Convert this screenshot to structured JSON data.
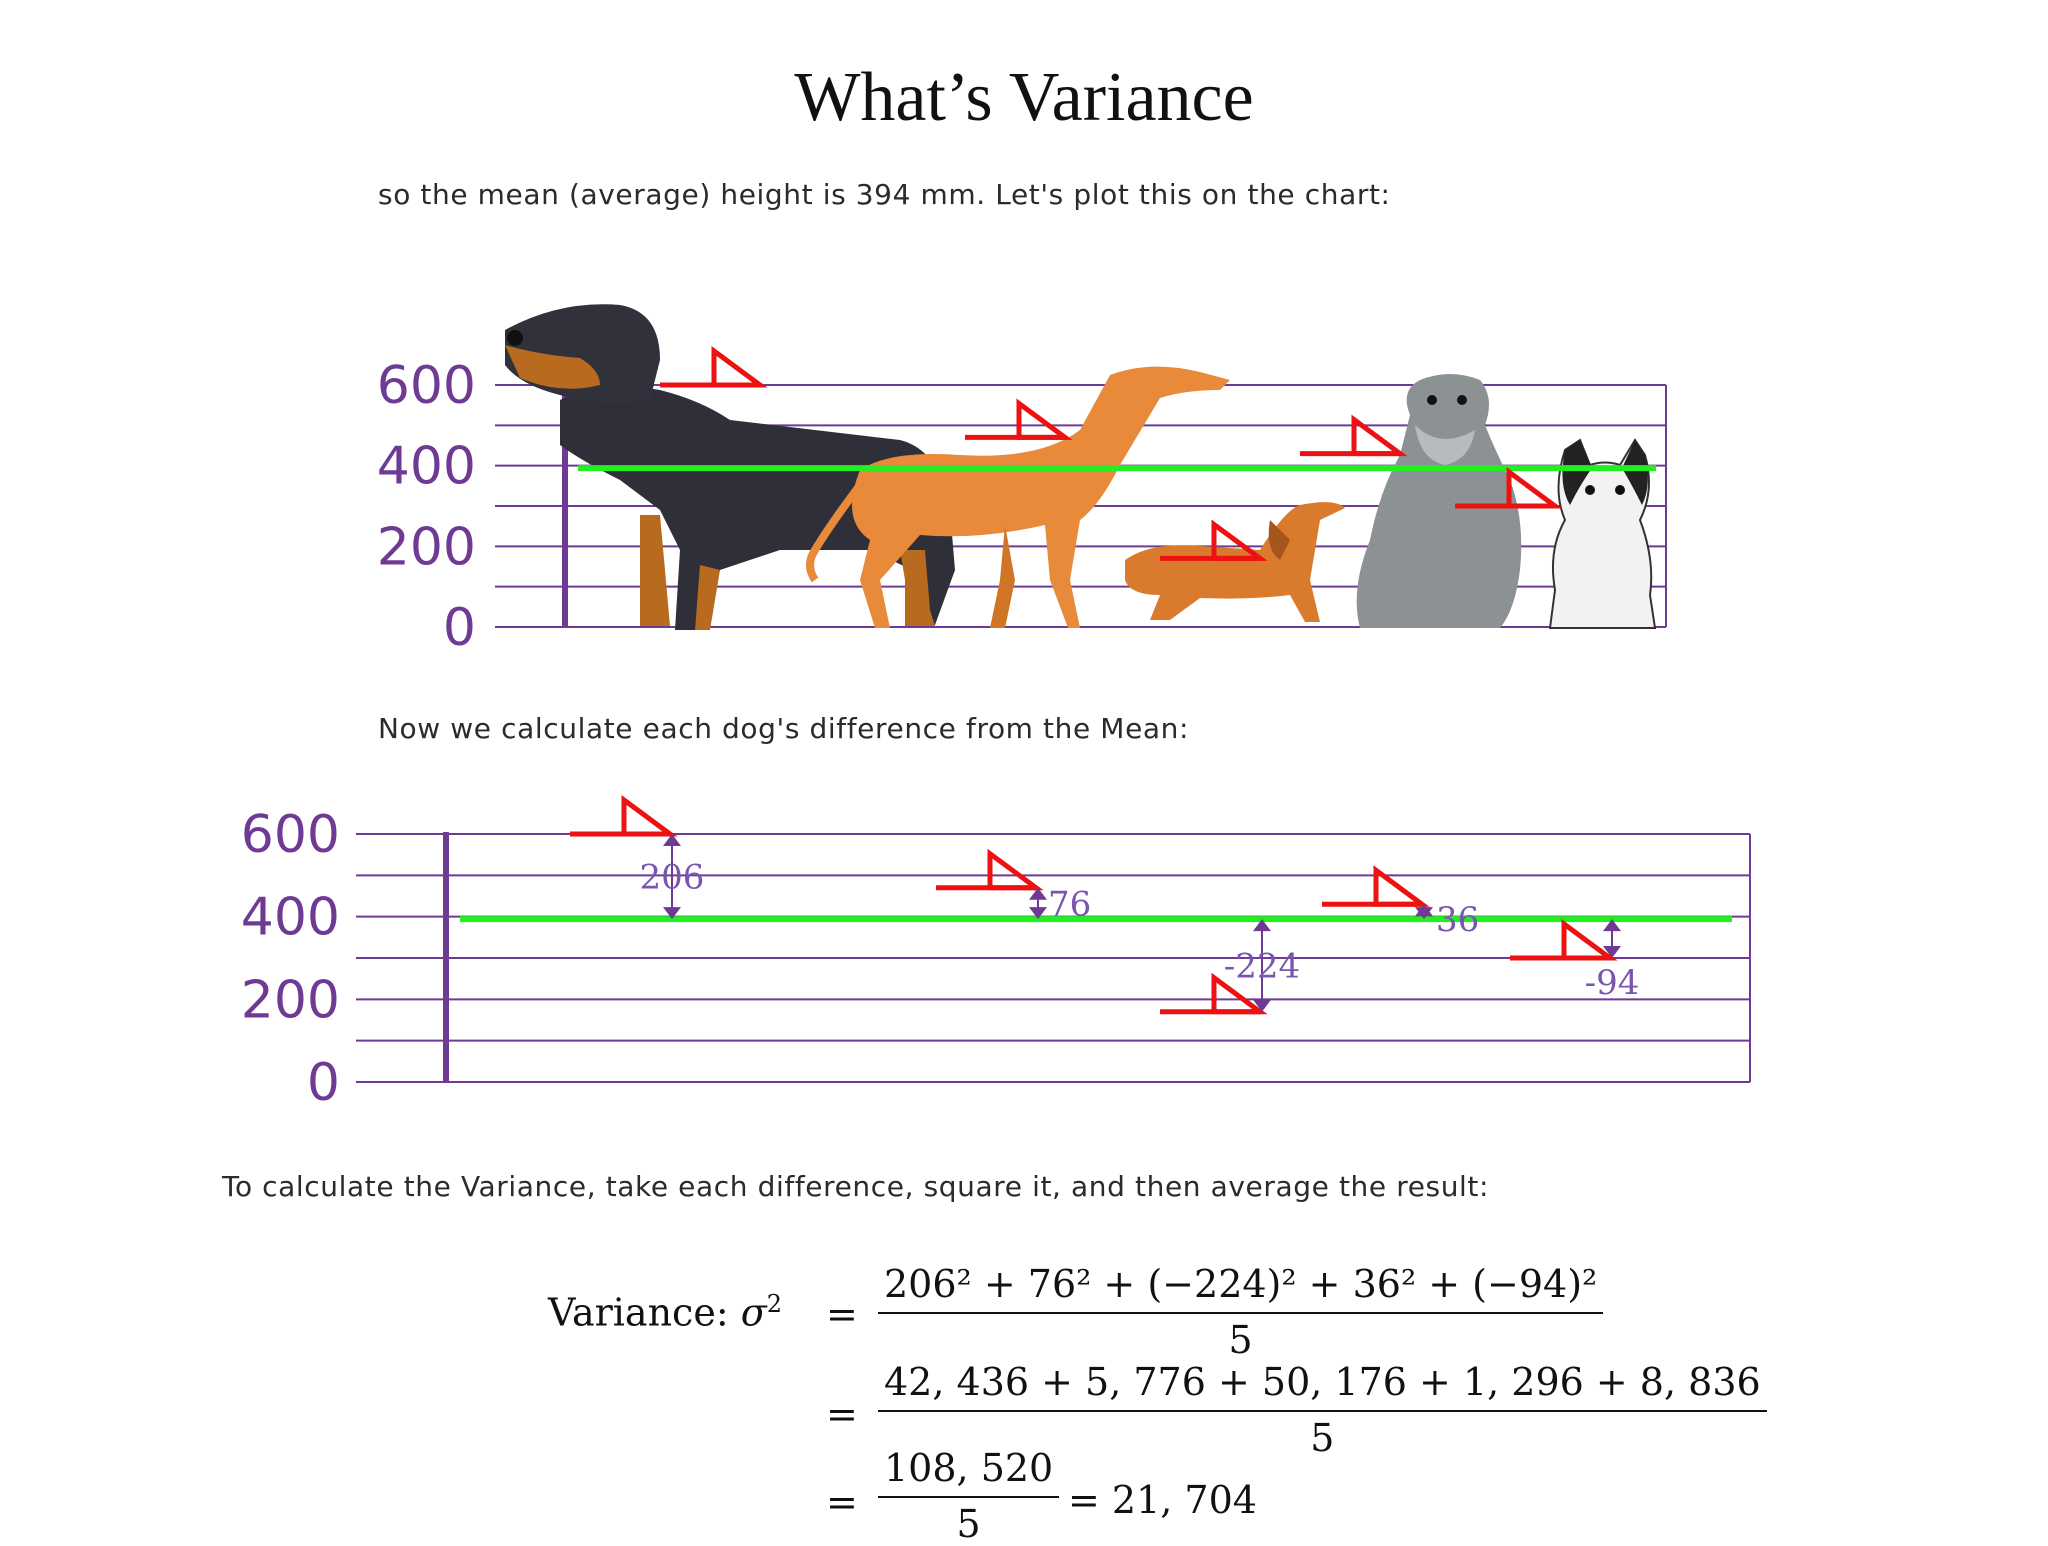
{
  "title": "What’s Variance",
  "captions": {
    "mean": "so the mean (average) height is 394 mm. Let's plot this on the chart:",
    "difference": "Now we calculate each dog's difference from the Mean:",
    "variance": "To calculate the Variance, take each difference, square it, and then average the result:"
  },
  "chart_data": [
    {
      "type": "line",
      "title": "",
      "yticks": [
        "600",
        "400",
        "200",
        "0"
      ],
      "ylim": [
        0,
        600
      ],
      "mean": 394,
      "series": [
        {
          "values": [
            600,
            470,
            170,
            430,
            300
          ]
        }
      ],
      "dogs": [
        "rottweiler-image",
        "greyhound-image",
        "dachshund-image",
        "schnauzer-image",
        "terrier-image"
      ],
      "colors": {
        "axis": "#6e3a93",
        "grid": "#6e3a93",
        "mean_line": "#22ee22",
        "markers": "#ee1111"
      }
    },
    {
      "type": "line",
      "title": "",
      "yticks": [
        "600",
        "400",
        "200",
        "0"
      ],
      "ylim": [
        0,
        600
      ],
      "mean": 394,
      "series": [
        {
          "values": [
            600,
            470,
            170,
            430,
            300
          ]
        }
      ],
      "differences": [
        "206",
        "76",
        "-224",
        "36",
        "-94"
      ],
      "colors": {
        "axis": "#6e3a93",
        "grid": "#6e3a93",
        "mean_line": "#22ee22",
        "markers": "#ee1111",
        "arrows": "#6e3a93"
      }
    }
  ],
  "formula": {
    "label": "Variance:",
    "sigma": "σ",
    "exp2": "2",
    "eq": "=",
    "line1_num": "206² + 76² + (−224)² + 36² + (−94)²",
    "line1_den": "5",
    "line2_num": "42, 436 + 5, 776 + 50, 176 + 1, 296 + 8, 836",
    "line2_den": "5",
    "line3_num": "108, 520",
    "line3_den": "5",
    "result": "= 21, 704"
  }
}
